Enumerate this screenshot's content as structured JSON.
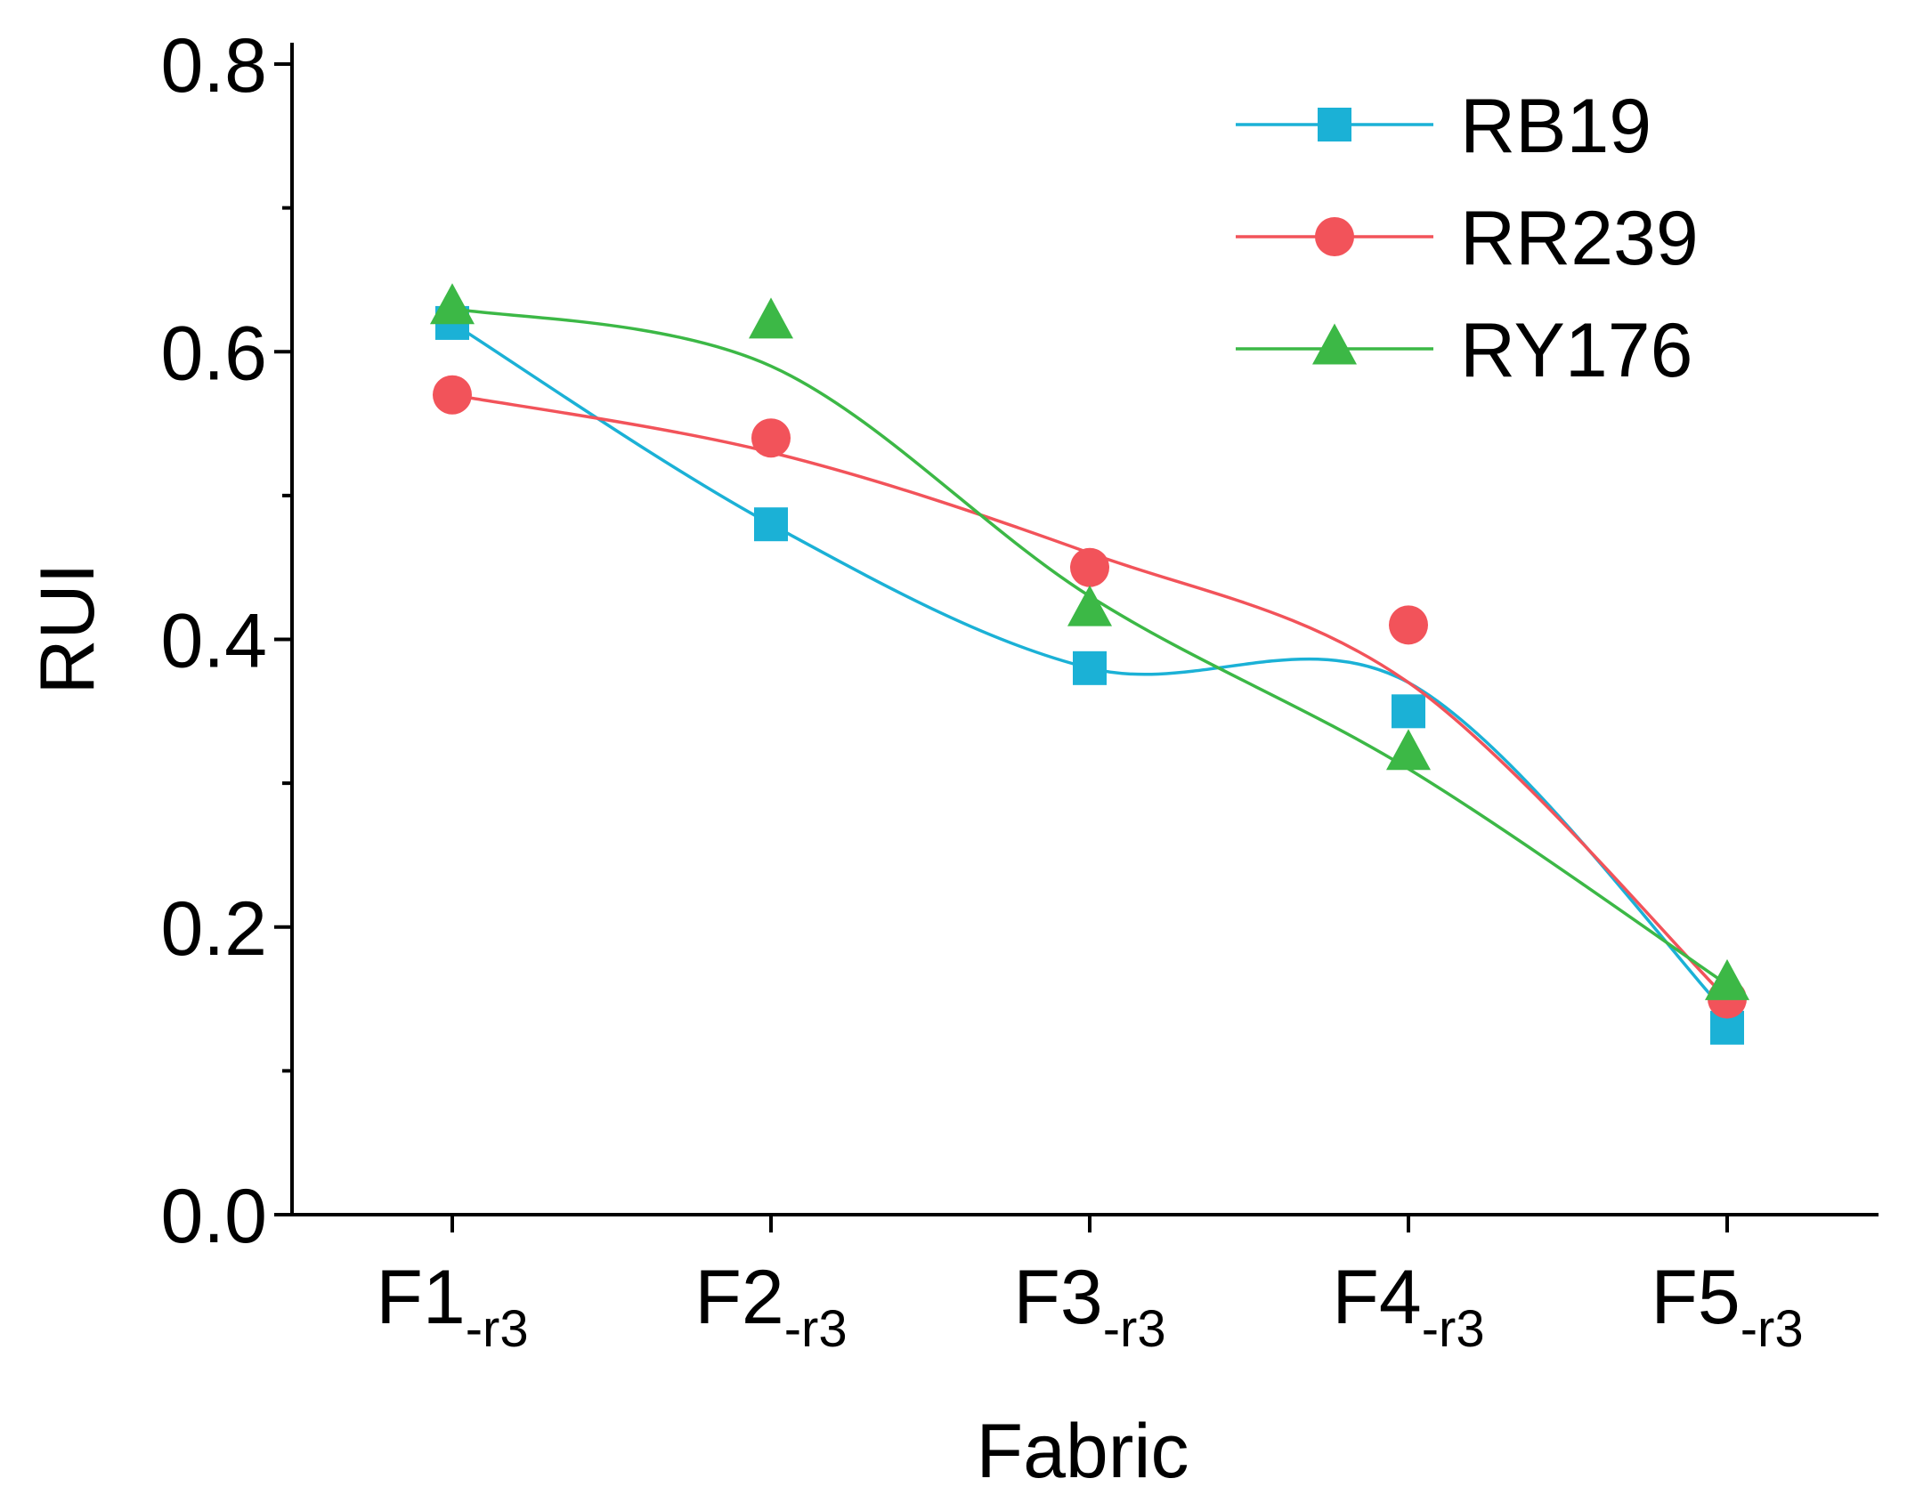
{
  "chart_data": {
    "type": "line",
    "title": "",
    "xlabel": "Fabric",
    "ylabel": "RUI",
    "ylim": [
      0.0,
      0.8
    ],
    "yticks": [
      "0.0",
      "0.2",
      "0.4",
      "0.6",
      "0.8"
    ],
    "categories": [
      {
        "main": "F1",
        "sub": "-r3"
      },
      {
        "main": "F2",
        "sub": "-r3"
      },
      {
        "main": "F3",
        "sub": "-r3"
      },
      {
        "main": "F4",
        "sub": "-r3"
      },
      {
        "main": "F5",
        "sub": "-r3"
      }
    ],
    "legend_position": "top-right",
    "grid": false,
    "series": [
      {
        "name": "RB19",
        "marker": "square",
        "color": "#1BB1D6",
        "values": [
          0.62,
          0.48,
          0.38,
          0.35,
          0.13
        ],
        "fit": [
          0.62,
          0.48,
          0.38,
          0.37,
          0.14
        ]
      },
      {
        "name": "RR239",
        "marker": "circle",
        "color": "#F2535A",
        "values": [
          0.57,
          0.54,
          0.45,
          0.41,
          0.15
        ],
        "fit": [
          0.57,
          0.53,
          0.46,
          0.37,
          0.15
        ]
      },
      {
        "name": "RY176",
        "marker": "triangle",
        "color": "#3CB846",
        "values": [
          0.63,
          0.62,
          0.42,
          0.32,
          0.16
        ],
        "fit": [
          0.63,
          0.59,
          0.43,
          0.31,
          0.16
        ]
      }
    ]
  }
}
